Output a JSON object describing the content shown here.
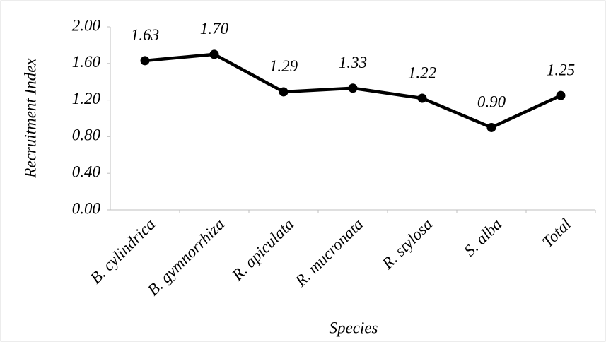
{
  "chart_data": {
    "type": "line",
    "y_label": "Recruitment Index",
    "x_label": "Species",
    "categories": [
      "B. cylindrica",
      "B. gymnorrhiza",
      "R. apiculata",
      "R. mucronata",
      "R. stylosa",
      "S. alba",
      "Total"
    ],
    "values": [
      1.63,
      1.7,
      1.29,
      1.33,
      1.22,
      0.9,
      1.25
    ],
    "value_labels": [
      "1.63",
      "1.70",
      "1.29",
      "1.33",
      "1.22",
      "0.90",
      "1.25"
    ],
    "color": "#000000",
    "ylim": [
      0,
      2
    ],
    "yticks": [
      {
        "value": 0,
        "label": "0.00"
      },
      {
        "value": 0.4,
        "label": "0.40"
      },
      {
        "value": 0.8,
        "label": "0.80"
      },
      {
        "value": 1.2,
        "label": "1.20"
      },
      {
        "value": 1.6,
        "label": "1.60"
      },
      {
        "value": 2,
        "label": "2.00"
      }
    ],
    "grid": false
  }
}
